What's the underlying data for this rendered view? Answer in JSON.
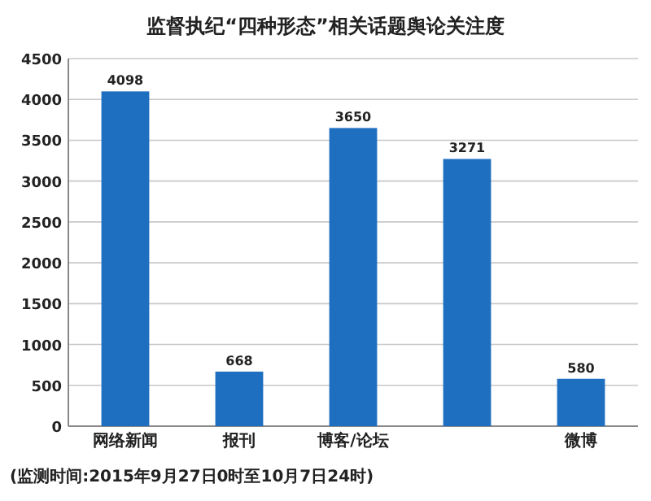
{
  "chart_data": {
    "type": "bar",
    "title": "监督执纪“四种形态”相关话题舆论关注度",
    "categories": [
      "网络新闻",
      "报刊",
      "博客/论坛",
      null,
      "微博"
    ],
    "values": [
      4098,
      668,
      3650,
      3271,
      580
    ],
    "color": "#1f6fc0",
    "ylim": [
      0,
      4500
    ],
    "yticks": [
      0,
      500,
      1000,
      1500,
      2000,
      2500,
      3000,
      3500,
      4000,
      4500
    ],
    "grid": "y",
    "data_labels": true,
    "annotations": [
      "(监测时间:2015年9月27日0时至10月7日24时)"
    ]
  }
}
